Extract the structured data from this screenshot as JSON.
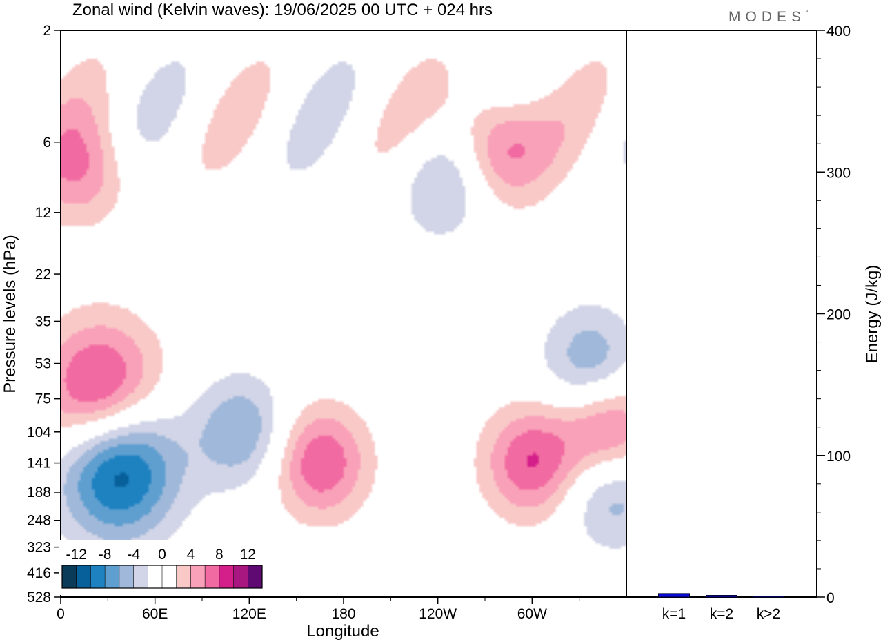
{
  "title": "Zonal wind (Kelvin waves):  19/06/2025  00 UTC  + 024 hrs",
  "brand": "MODES",
  "brand_mark": "°",
  "colors": {
    "brand": "#666666",
    "bar_fill": "#0a0ad6",
    "bar_stroke": "#000033",
    "palette": [
      "#0a3c5a",
      "#07609a",
      "#1e82c0",
      "#5f9fd0",
      "#a0b8da",
      "#d2d5e7",
      "#ffffff",
      "#ffffff",
      "#f9c9c8",
      "#f9a1b8",
      "#f26aa2",
      "#d41f8a",
      "#a8167f",
      "#5f0a73"
    ]
  },
  "chart_data": [
    {
      "type": "heatmap",
      "title": "Zonal wind (Kelvin waves):  19/06/2025  00 UTC  + 024 hrs",
      "xlabel": "Longitude",
      "ylabel": "Pressure levels (hPa)",
      "x_ticks": [
        "0",
        "60E",
        "120E",
        "180",
        "120W",
        "60W"
      ],
      "y_ticks": [
        "2",
        "6",
        "12",
        "22",
        "35",
        "53",
        "75",
        "104",
        "141",
        "188",
        "248",
        "323",
        "416",
        "528"
      ],
      "y_scale": "log-pressure (reversed, 2 at top, 528 at bottom)",
      "colorbar": {
        "labels": [
          "-12",
          "-8",
          "-4",
          "0",
          "4",
          "8",
          "12"
        ],
        "levels": [
          -14,
          -12,
          -10,
          -8,
          -6,
          -4,
          -2,
          0,
          2,
          4,
          6,
          8,
          10,
          12,
          14
        ],
        "placement": "bottom-left inset"
      },
      "features": [
        {
          "sign": "negative",
          "peak": -14,
          "lon": 35,
          "level": 141
        },
        {
          "sign": "negative",
          "peak": -6,
          "lon": 115,
          "level": 104
        },
        {
          "sign": "negative",
          "peak": -6,
          "lon": 352,
          "level": 188
        },
        {
          "sign": "negative",
          "peak": -6,
          "lon": 338,
          "level": 53
        },
        {
          "sign": "positive",
          "peak": 12,
          "lon": 25,
          "level": 75
        },
        {
          "sign": "positive",
          "peak": 8,
          "lon": 165,
          "level": 141
        },
        {
          "sign": "positive",
          "peak": 8,
          "lon": 300,
          "level": 141
        },
        {
          "sign": "positive",
          "peak": 8,
          "lon": 350,
          "level": 104
        },
        {
          "sign": "positive",
          "peak": 8,
          "lon": 277,
          "level": 6
        },
        {
          "sign": "positive",
          "peak": 6,
          "lon": 15,
          "level": 8
        },
        {
          "sign": "negative",
          "peak": -4,
          "lon": 245,
          "level": 9
        }
      ]
    },
    {
      "type": "bar",
      "title": "",
      "xlabel": "",
      "ylabel": "Energy (J/kg)",
      "categories": [
        "k=1",
        "k=2",
        "k>2"
      ],
      "values": [
        2.5,
        1.2,
        0.6
      ],
      "ylim": [
        0,
        400
      ],
      "y_ticks": [
        "0",
        "100",
        "200",
        "300",
        "400"
      ],
      "y_axis_side": "right"
    }
  ]
}
